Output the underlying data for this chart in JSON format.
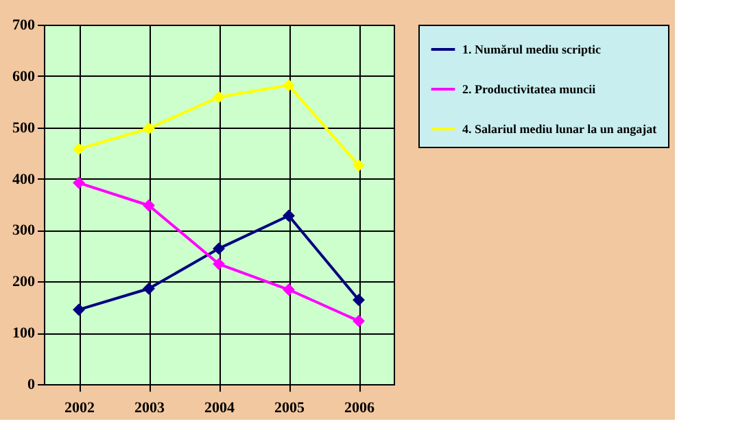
{
  "chart_data": {
    "type": "line",
    "categories": [
      "2002",
      "2003",
      "2004",
      "2005",
      "2006"
    ],
    "series": [
      {
        "name": "1. Numărul mediu scriptic",
        "color": "#000080",
        "values": [
          145,
          186,
          264,
          328,
          164
        ]
      },
      {
        "name": "2. Productivitatea muncii",
        "color": "#ff00ff",
        "values": [
          392,
          348,
          234,
          184,
          123
        ]
      },
      {
        "name": "4. Salariul mediu lunar la un angajat",
        "color": "#ffff00",
        "values": [
          458,
          498,
          559,
          582,
          426
        ]
      }
    ],
    "ylim": [
      0,
      700
    ],
    "yticks": [
      0,
      100,
      200,
      300,
      400,
      500,
      600,
      700
    ],
    "grid": true,
    "legend": "right",
    "marker": "diamond",
    "line_style": "solid"
  }
}
